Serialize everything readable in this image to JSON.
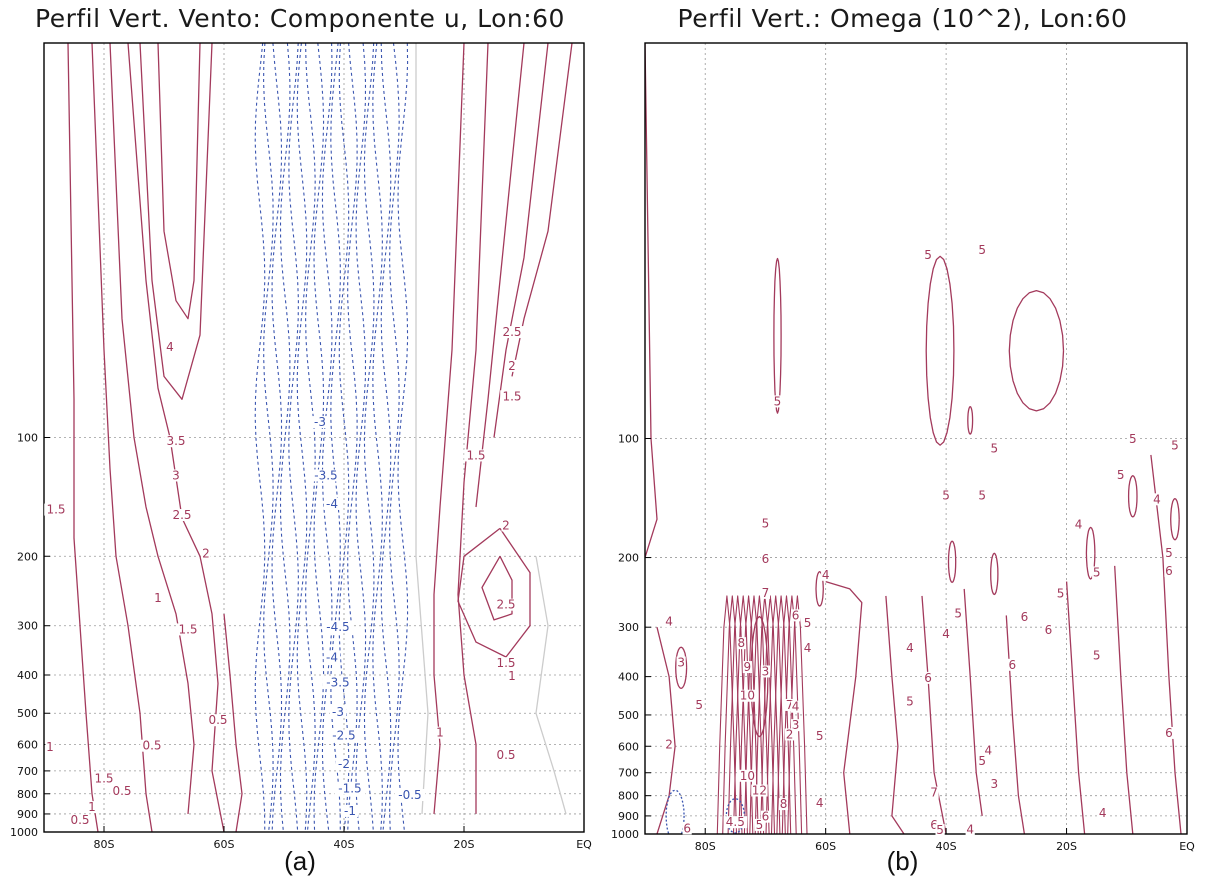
{
  "panels": [
    {
      "title": "Perfil Vert. Vento: Componente u, Lon:60",
      "caption": "(a)"
    },
    {
      "title": "Perfil Vert.: Omega (10^2), Lon:60",
      "caption": "(b)"
    }
  ],
  "chart_data": [
    {
      "type": "contour",
      "title": "Perfil Vert. Vento: Componente u, Lon:60",
      "xlabel": "",
      "ylabel": "",
      "x_ticks": [
        "80S",
        "60S",
        "40S",
        "20S",
        "EQ"
      ],
      "y_ticks": [
        "100",
        "200",
        "300",
        "400",
        "500",
        "600",
        "700",
        "800",
        "900",
        "1000"
      ],
      "x_range": [
        -90,
        0
      ],
      "y_range_hPa": [
        1000,
        10
      ],
      "y_scale": "log",
      "grid": true,
      "colors": {
        "positive": "#a33a5c",
        "negative": "#3a55b0",
        "zero": "#cccccc"
      },
      "contour_labels": [
        {
          "text": "4",
          "lat": -69,
          "p": 60
        },
        {
          "text": "3.5",
          "lat": -68,
          "p": 104
        },
        {
          "text": "3",
          "lat": -68,
          "p": 127
        },
        {
          "text": "2.5",
          "lat": -67,
          "p": 160
        },
        {
          "text": "2",
          "lat": -63,
          "p": 200
        },
        {
          "text": "1",
          "lat": -71,
          "p": 260
        },
        {
          "text": "1.5",
          "lat": -66,
          "p": 312
        },
        {
          "text": "1.5",
          "lat": -88,
          "p": 155
        },
        {
          "text": "0.5",
          "lat": -61,
          "p": 530
        },
        {
          "text": "1",
          "lat": -89,
          "p": 620
        },
        {
          "text": "0.5",
          "lat": -72,
          "p": 615
        },
        {
          "text": "1.5",
          "lat": -80,
          "p": 745
        },
        {
          "text": "0.5",
          "lat": -77,
          "p": 800
        },
        {
          "text": "1",
          "lat": -82,
          "p": 880
        },
        {
          "text": "0.5",
          "lat": -84,
          "p": 950
        },
        {
          "text": "-3",
          "lat": -44,
          "p": 93
        },
        {
          "text": "-3.5",
          "lat": -43,
          "p": 127
        },
        {
          "text": "-4",
          "lat": -42,
          "p": 150
        },
        {
          "text": "-4.5",
          "lat": -41,
          "p": 308
        },
        {
          "text": "-4",
          "lat": -42,
          "p": 367
        },
        {
          "text": "-3.5",
          "lat": -41,
          "p": 425
        },
        {
          "text": "-3",
          "lat": -41,
          "p": 505
        },
        {
          "text": "-2.5",
          "lat": -40,
          "p": 580
        },
        {
          "text": "-2",
          "lat": -40,
          "p": 685
        },
        {
          "text": "-1.5",
          "lat": -39,
          "p": 790
        },
        {
          "text": "-1",
          "lat": -39,
          "p": 900
        },
        {
          "text": "-0.5",
          "lat": -29,
          "p": 820
        },
        {
          "text": "2.5",
          "lat": -12,
          "p": 55
        },
        {
          "text": "2",
          "lat": -12,
          "p": 67
        },
        {
          "text": "1.5",
          "lat": -12,
          "p": 80
        },
        {
          "text": "1.5",
          "lat": -18,
          "p": 113
        },
        {
          "text": "2",
          "lat": -13,
          "p": 170
        },
        {
          "text": "2.5",
          "lat": -13,
          "p": 270
        },
        {
          "text": "1.5",
          "lat": -13,
          "p": 380
        },
        {
          "text": "1",
          "lat": -12,
          "p": 410
        },
        {
          "text": "1",
          "lat": -24,
          "p": 570
        },
        {
          "text": "0.5",
          "lat": -13,
          "p": 650
        }
      ]
    },
    {
      "type": "contour",
      "title": "Perfil Vert.: Omega (10^2), Lon:60",
      "xlabel": "",
      "ylabel": "",
      "x_ticks": [
        "80S",
        "60S",
        "40S",
        "20S",
        "EQ"
      ],
      "y_ticks": [
        "100",
        "200",
        "300",
        "400",
        "500",
        "600",
        "700",
        "800",
        "900",
        "1000"
      ],
      "x_range": [
        -90,
        0
      ],
      "y_range_hPa": [
        1000,
        10
      ],
      "y_scale": "log",
      "grid": true,
      "colors": {
        "positive": "#a33a5c",
        "negative": "#3a55b0"
      },
      "contour_labels": [
        {
          "text": "5",
          "lat": -43,
          "p": 35
        },
        {
          "text": "5",
          "lat": -34,
          "p": 34
        },
        {
          "text": "5",
          "lat": -68,
          "p": 82
        },
        {
          "text": "5",
          "lat": -32,
          "p": 108
        },
        {
          "text": "5",
          "lat": -9,
          "p": 102
        },
        {
          "text": "5",
          "lat": -2,
          "p": 106
        },
        {
          "text": "5",
          "lat": -11,
          "p": 126
        },
        {
          "text": "5",
          "lat": -40,
          "p": 142
        },
        {
          "text": "5",
          "lat": -34,
          "p": 142
        },
        {
          "text": "5",
          "lat": -70,
          "p": 167
        },
        {
          "text": "4",
          "lat": -18,
          "p": 168
        },
        {
          "text": "4",
          "lat": -5,
          "p": 145
        },
        {
          "text": "5",
          "lat": -3,
          "p": 198
        },
        {
          "text": "6",
          "lat": -70,
          "p": 205
        },
        {
          "text": "4",
          "lat": -60,
          "p": 225
        },
        {
          "text": "7",
          "lat": -70,
          "p": 250
        },
        {
          "text": "5",
          "lat": -15,
          "p": 222
        },
        {
          "text": "6",
          "lat": -3,
          "p": 220
        },
        {
          "text": "5",
          "lat": -21,
          "p": 251
        },
        {
          "text": "5",
          "lat": -38,
          "p": 282
        },
        {
          "text": "6",
          "lat": -27,
          "p": 288
        },
        {
          "text": "6",
          "lat": -65,
          "p": 285
        },
        {
          "text": "5",
          "lat": -63,
          "p": 298
        },
        {
          "text": "4",
          "lat": -86,
          "p": 295
        },
        {
          "text": "4",
          "lat": -40,
          "p": 318
        },
        {
          "text": "6",
          "lat": -23,
          "p": 310
        },
        {
          "text": "8",
          "lat": -74,
          "p": 335
        },
        {
          "text": "4",
          "lat": -63,
          "p": 345
        },
        {
          "text": "4",
          "lat": -46,
          "p": 345
        },
        {
          "text": "3",
          "lat": -84,
          "p": 375
        },
        {
          "text": "9",
          "lat": -73,
          "p": 385
        },
        {
          "text": "3",
          "lat": -70,
          "p": 395
        },
        {
          "text": "5",
          "lat": -15,
          "p": 360
        },
        {
          "text": "6",
          "lat": -29,
          "p": 380
        },
        {
          "text": "6",
          "lat": -43,
          "p": 410
        },
        {
          "text": "10",
          "lat": -73,
          "p": 455
        },
        {
          "text": "5",
          "lat": -81,
          "p": 480
        },
        {
          "text": "7",
          "lat": -66,
          "p": 480
        },
        {
          "text": "4",
          "lat": -65,
          "p": 485
        },
        {
          "text": "5",
          "lat": -46,
          "p": 470
        },
        {
          "text": "3",
          "lat": -65,
          "p": 540
        },
        {
          "text": "2",
          "lat": -66,
          "p": 570
        },
        {
          "text": "5",
          "lat": -61,
          "p": 575
        },
        {
          "text": "2",
          "lat": -86,
          "p": 605
        },
        {
          "text": "4",
          "lat": -33,
          "p": 625
        },
        {
          "text": "5",
          "lat": -34,
          "p": 665
        },
        {
          "text": "6",
          "lat": -3,
          "p": 565
        },
        {
          "text": "10",
          "lat": -73,
          "p": 725
        },
        {
          "text": "12",
          "lat": -71,
          "p": 790
        },
        {
          "text": "3",
          "lat": -32,
          "p": 760
        },
        {
          "text": "7",
          "lat": -42,
          "p": 800
        },
        {
          "text": "4",
          "lat": -61,
          "p": 850
        },
        {
          "text": "4",
          "lat": -14,
          "p": 900
        },
        {
          "text": "4.5",
          "lat": -75,
          "p": 950
        },
        {
          "text": "5",
          "lat": -71,
          "p": 965
        },
        {
          "text": "6",
          "lat": -83,
          "p": 985
        },
        {
          "text": "6",
          "lat": -42,
          "p": 965
        },
        {
          "text": "4",
          "lat": -36,
          "p": 990
        },
        {
          "text": "5",
          "lat": -41,
          "p": 995
        },
        {
          "text": "6",
          "lat": -70,
          "p": 920
        },
        {
          "text": "8",
          "lat": -67,
          "p": 855
        }
      ]
    }
  ]
}
